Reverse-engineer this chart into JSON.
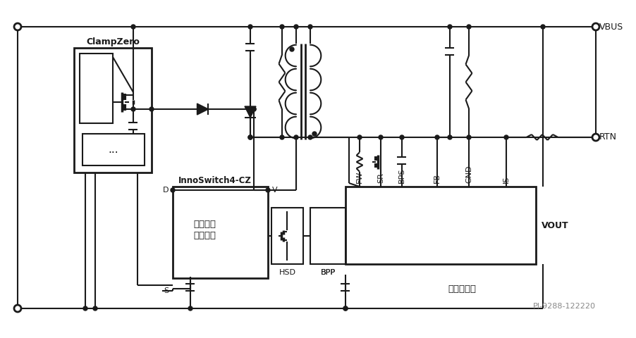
{
  "bg_color": "#ffffff",
  "line_color": "#1a1a1a",
  "lw": 1.5,
  "figsize": [
    9.03,
    4.8
  ],
  "dpi": 100,
  "labels": {
    "clampzero": "ClampZero",
    "innoswitch": "InnoSwitch4-CZ",
    "primary1": "初級開關",
    "primary2": "及控制器",
    "secondary": "次級側控制",
    "vbus": "VBUS",
    "rtn": "RTN",
    "vout": "VOUT",
    "D": "D",
    "V": "V",
    "S": "S",
    "HSD": "HSD",
    "BPP": "BPP",
    "FW": "FW",
    "SR": "SR",
    "BPS": "BPS",
    "FB": "FB",
    "GND": "GND",
    "IS": "IS",
    "pi_ref": "PI-9288-122220"
  }
}
